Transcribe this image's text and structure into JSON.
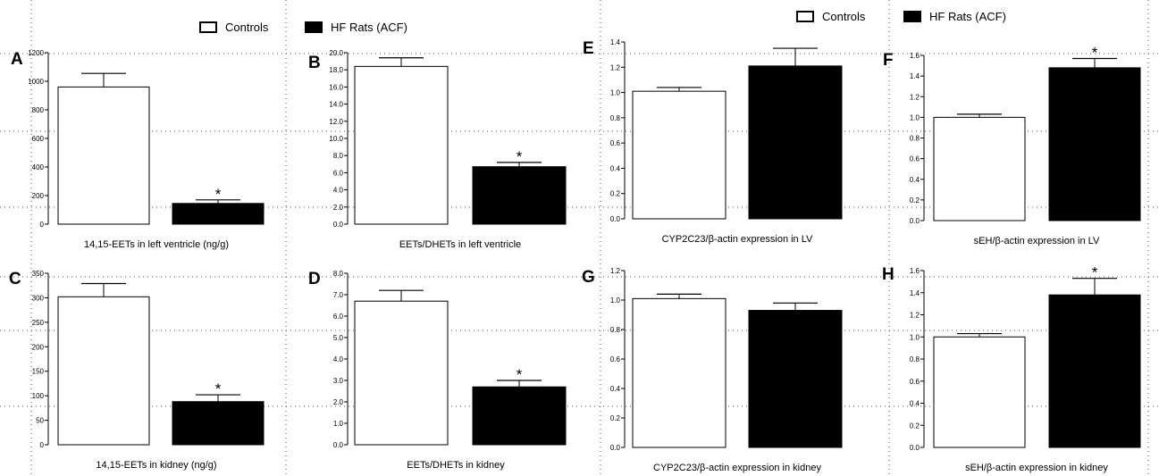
{
  "legend": [
    {
      "label": "Controls",
      "fill": "#ffffff"
    },
    {
      "label": "HF Rats (ACF)",
      "fill": "#000000"
    }
  ],
  "colors": {
    "control": "#ffffff",
    "hf": "#000000",
    "axis": "#000000",
    "grid": "#555555"
  },
  "chart_data": [
    {
      "type": "bar",
      "panel": "A",
      "xlabel": "14,15-EETs in left ventricle (ng/g)",
      "categories": [
        "Controls",
        "HF Rats (ACF)"
      ],
      "values": [
        960,
        145
      ],
      "errors": [
        95,
        25
      ],
      "significant": [
        false,
        true
      ],
      "ylim": [
        0,
        1200
      ],
      "yticks": [
        0,
        200,
        400,
        600,
        800,
        1000,
        1200
      ],
      "tick_labels": [
        "0",
        "200",
        "400",
        "600",
        "800",
        "1000",
        "1200"
      ]
    },
    {
      "type": "bar",
      "panel": "B",
      "xlabel": "EETs/DHETs in left ventricle",
      "categories": [
        "Controls",
        "HF Rats (ACF)"
      ],
      "values": [
        18.4,
        6.7
      ],
      "errors": [
        1.0,
        0.5
      ],
      "significant": [
        false,
        true
      ],
      "ylim": [
        0,
        20
      ],
      "yticks": [
        0,
        2,
        4,
        6,
        8,
        10,
        12,
        14,
        16,
        18,
        20
      ],
      "tick_labels": [
        "0.0",
        "2.0",
        "4.0",
        "6.0",
        "8.0",
        "10.0",
        "12.0",
        "14.0",
        "16.0",
        "18.0",
        "20.0"
      ]
    },
    {
      "type": "bar",
      "panel": "E",
      "xlabel": "CYP2C23/β-actin expression in LV",
      "categories": [
        "Controls",
        "HF Rats (ACF)"
      ],
      "values": [
        1.01,
        1.21
      ],
      "errors": [
        0.03,
        0.14
      ],
      "significant": [
        false,
        false
      ],
      "ylim": [
        0,
        1.4
      ],
      "yticks": [
        0,
        0.2,
        0.4,
        0.6,
        0.8,
        1.0,
        1.2,
        1.4
      ],
      "tick_labels": [
        "0.0",
        "0.2",
        "0.4",
        "0.6",
        "0.8",
        "1.0",
        "1.2",
        "1.4"
      ]
    },
    {
      "type": "bar",
      "panel": "F",
      "xlabel": "sEH/β-actin expression in LV",
      "categories": [
        "Controls",
        "HF Rats (ACF)"
      ],
      "values": [
        1.0,
        1.48
      ],
      "errors": [
        0.03,
        0.09
      ],
      "significant": [
        false,
        true
      ],
      "ylim": [
        0,
        1.6
      ],
      "yticks": [
        0,
        0.2,
        0.4,
        0.6,
        0.8,
        1.0,
        1.2,
        1.4,
        1.6
      ],
      "tick_labels": [
        "0.0",
        "0.2",
        "0.4",
        "0.6",
        "0.8",
        "1.0",
        "1.2",
        "1.4",
        "1.6"
      ]
    },
    {
      "type": "bar",
      "panel": "C",
      "xlabel": "14,15-EETs in kidney (ng/g)",
      "categories": [
        "Controls",
        "HF Rats (ACF)"
      ],
      "values": [
        302,
        88
      ],
      "errors": [
        27,
        14
      ],
      "significant": [
        false,
        true
      ],
      "ylim": [
        0,
        350
      ],
      "yticks": [
        0,
        50,
        100,
        150,
        200,
        250,
        300,
        350
      ],
      "tick_labels": [
        "0",
        "50",
        "100",
        "150",
        "200",
        "250",
        "300",
        "350"
      ]
    },
    {
      "type": "bar",
      "panel": "D",
      "xlabel": "EETs/DHETs in kidney",
      "categories": [
        "Controls",
        "HF Rats (ACF)"
      ],
      "values": [
        6.7,
        2.7
      ],
      "errors": [
        0.5,
        0.3
      ],
      "significant": [
        false,
        true
      ],
      "ylim": [
        0,
        8
      ],
      "yticks": [
        0,
        1,
        2,
        3,
        4,
        5,
        6,
        7,
        8
      ],
      "tick_labels": [
        "0.0",
        "1.0",
        "2.0",
        "3.0",
        "4.0",
        "5.0",
        "6.0",
        "7.0",
        "8.0"
      ]
    },
    {
      "type": "bar",
      "panel": "G",
      "xlabel": "CYP2C23/β-actin expression in kidney",
      "categories": [
        "Controls",
        "HF Rats (ACF)"
      ],
      "values": [
        1.01,
        0.93
      ],
      "errors": [
        0.03,
        0.05
      ],
      "significant": [
        false,
        false
      ],
      "ylim": [
        0,
        1.2
      ],
      "yticks": [
        0,
        0.2,
        0.4,
        0.6,
        0.8,
        1.0,
        1.2
      ],
      "tick_labels": [
        "0.0",
        "0.2",
        "0.4",
        "0.6",
        "0.8",
        "1.0",
        "1.2"
      ]
    },
    {
      "type": "bar",
      "panel": "H",
      "xlabel": "sEH/β-actin expression in kidney",
      "categories": [
        "Controls",
        "HF Rats (ACF)"
      ],
      "values": [
        1.0,
        1.38
      ],
      "errors": [
        0.03,
        0.15
      ],
      "significant": [
        false,
        true
      ],
      "ylim": [
        0,
        1.6
      ],
      "yticks": [
        0,
        0.2,
        0.4,
        0.6,
        0.8,
        1.0,
        1.2,
        1.4,
        1.6
      ],
      "tick_labels": [
        "0.0",
        "0.2",
        "0.4",
        "0.6",
        "0.8",
        "1.0",
        "1.2",
        "1.4",
        "1.6"
      ]
    }
  ],
  "significance_marker": "*"
}
